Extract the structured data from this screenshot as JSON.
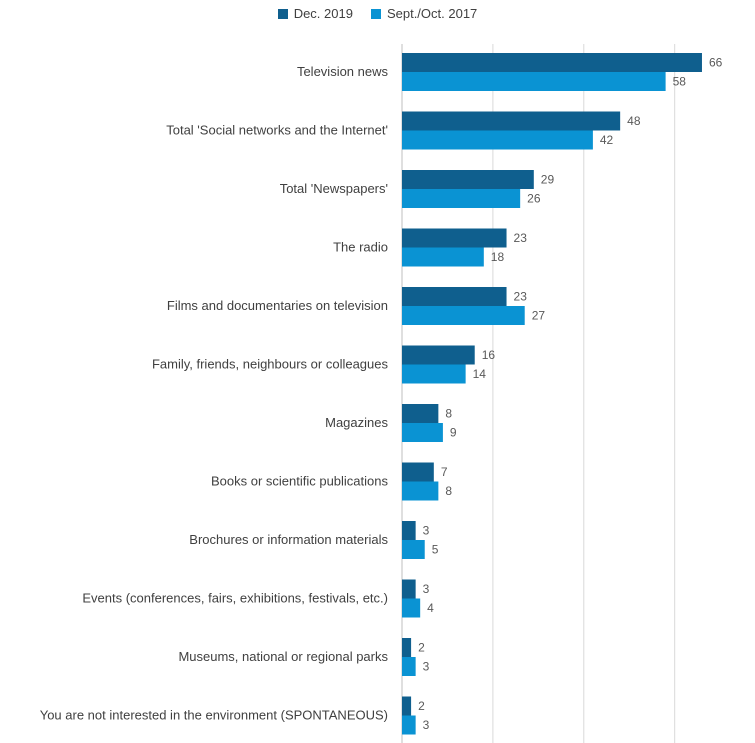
{
  "legend": {
    "series1": "Dec. 2019",
    "series2": "Sept./Oct. 2017"
  },
  "colors": {
    "series1": "#0f5f8e",
    "series2": "#0a93d3",
    "grid": "#d9d9d9",
    "axis": "#bfbfbf"
  },
  "chart_data": {
    "type": "bar",
    "orientation": "horizontal",
    "categories": [
      "Television news",
      "Total 'Social networks and the Internet'",
      "Total 'Newspapers'",
      "The radio",
      "Films and documentaries on television",
      "Family, friends, neighbours or colleagues",
      "Magazines",
      "Books or scientific publications",
      "Brochures or information materials",
      "Events (conferences, fairs, exhibitions, festivals, etc.)",
      "Museums, national or regional parks",
      "You are not interested in the environment (SPONTANEOUS)"
    ],
    "series": [
      {
        "name": "Dec. 2019",
        "values": [
          66,
          48,
          29,
          23,
          23,
          16,
          8,
          7,
          3,
          3,
          2,
          2
        ]
      },
      {
        "name": "Sept./Oct. 2017",
        "values": [
          58,
          42,
          26,
          18,
          27,
          14,
          9,
          8,
          5,
          4,
          3,
          3
        ]
      }
    ],
    "xlim": [
      0,
      70
    ],
    "grid": true,
    "legend_position": "top"
  }
}
